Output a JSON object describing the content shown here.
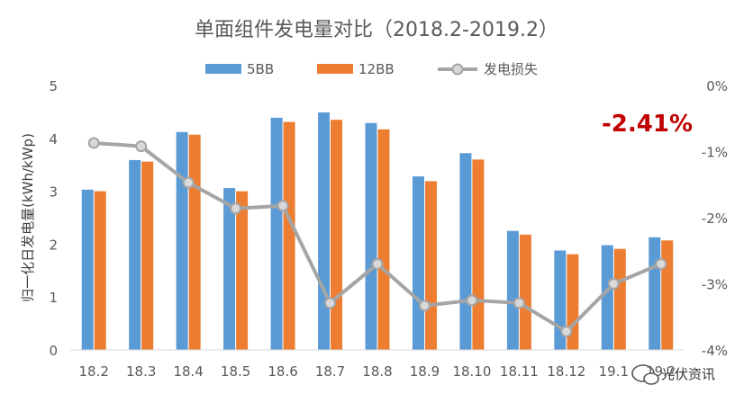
{
  "chart_data": {
    "type": "bar",
    "title": "单面组件发电量对比（2018.2-2019.2）",
    "ylabel": "归一化日发电量(kWh/kWp)",
    "xlabel": "",
    "categories": [
      "18.2",
      "18.3",
      "18.4",
      "18.5",
      "18.6",
      "18.7",
      "18.8",
      "18.9",
      "18.10",
      "18.11",
      "18.12",
      "19.1",
      "19.2"
    ],
    "ylim": [
      0,
      5
    ],
    "y_ticks": [
      "0",
      "1",
      "2",
      "3",
      "4",
      "5"
    ],
    "y2lim": [
      -4,
      0
    ],
    "y2_ticks": [
      "0%",
      "-1%",
      "-2%",
      "-3%",
      "-4%"
    ],
    "series": [
      {
        "name": "5BB",
        "type": "bar",
        "color": "#5b9bd5",
        "values": [
          3.03,
          3.59,
          4.12,
          3.06,
          4.39,
          4.49,
          4.29,
          3.28,
          3.72,
          2.25,
          1.88,
          1.98,
          2.13
        ]
      },
      {
        "name": "12BB",
        "type": "bar",
        "color": "#ed7d31",
        "values": [
          3.0,
          3.56,
          4.07,
          3.0,
          4.31,
          4.35,
          4.17,
          3.19,
          3.6,
          2.18,
          1.81,
          1.91,
          2.07
        ]
      },
      {
        "name": "发电损失",
        "type": "line",
        "axis": "secondary",
        "color": "#a5a5a5",
        "values": [
          -0.87,
          -0.92,
          -1.47,
          -1.86,
          -1.82,
          -3.29,
          -2.7,
          -3.33,
          -3.25,
          -3.29,
          -3.72,
          -3.0,
          -2.7
        ]
      }
    ],
    "annotation": "-2.41%",
    "legend_position": "top",
    "grid": false
  },
  "watermark": "光伏资讯"
}
